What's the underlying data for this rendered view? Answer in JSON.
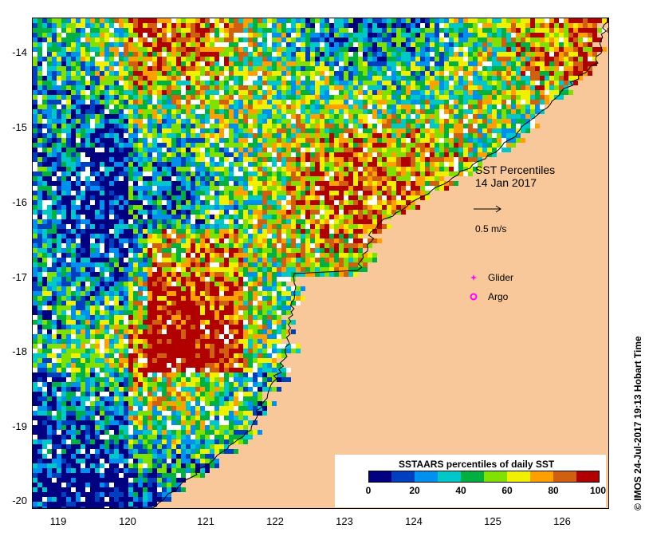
{
  "map": {
    "title_line1": "SST Percentiles",
    "title_line2": "14 Jan 2017",
    "scale_label": "0.5 m/s",
    "glider_label": "Glider",
    "argo_label": "Argo",
    "land_color": "#f8c89a",
    "marker_color": "#ff00ff"
  },
  "axes": {
    "y_ticks": [
      "-14",
      "-15",
      "-16",
      "-17",
      "-18",
      "-19",
      "-20"
    ],
    "x_ticks": [
      "119",
      "120",
      "121",
      "122",
      "123",
      "124",
      "125",
      "126"
    ]
  },
  "legend": {
    "title": "SSTAARS percentiles of daily SST",
    "ticks": [
      "0",
      "20",
      "40",
      "60",
      "80",
      "100"
    ],
    "colors": [
      "#000080",
      "#0040c0",
      "#0090f0",
      "#00c8c8",
      "#00b040",
      "#80e000",
      "#f0f000",
      "#ffa000",
      "#d06010",
      "#b00000"
    ]
  },
  "credit": "© IMOS 24-Jul-2017 19:13 Hobart Time"
}
